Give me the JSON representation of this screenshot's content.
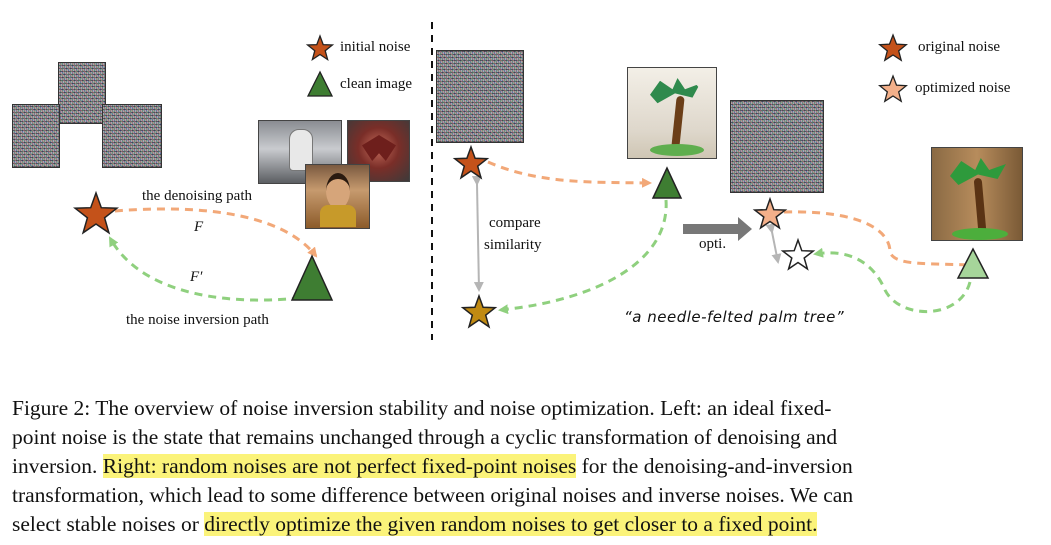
{
  "left_panel": {
    "legend": {
      "initial_noise": "initial noise",
      "clean_image": "clean image"
    },
    "denoising_path": "the denoising path",
    "f_label": "F",
    "f_prime_label": "F′",
    "inversion_path": "the noise inversion path"
  },
  "right_panel": {
    "legend": {
      "original_noise": "original noise",
      "optimized_noise": "optimized noise"
    },
    "compare_line1": "compare",
    "compare_line2": "similarity",
    "opti_label": "opti.",
    "prompt": "“a needle-felted palm tree”"
  },
  "caption": {
    "line1": "Figure 2: The overview of noise inversion stability and noise optimization. Left: an ideal fixed-",
    "line2": "point noise is the state that remains unchanged through a cyclic transformation of denoising and",
    "line3_pre": "inversion. ",
    "line3_hl": "Right: random noises are not perfect fixed-point noises",
    "line3_post": " for the denoising-and-inversion",
    "line4": "transformation, which lead to some difference between original noises and inverse noises. We can",
    "line5_pre": "select stable noises or ",
    "line5_hl": "directly optimize the given random noises to get closer to a fixed point."
  },
  "colors": {
    "initial_star": "#c4521a",
    "triangle": "#3e7d32",
    "inverse_star": "#c08a12",
    "optimized_star": "#f3b08a",
    "light_triangle": "#a6d59a",
    "denoise_path": "#f2a878",
    "inversion_path": "#8fd07e",
    "highlight": "#fbf37a"
  }
}
